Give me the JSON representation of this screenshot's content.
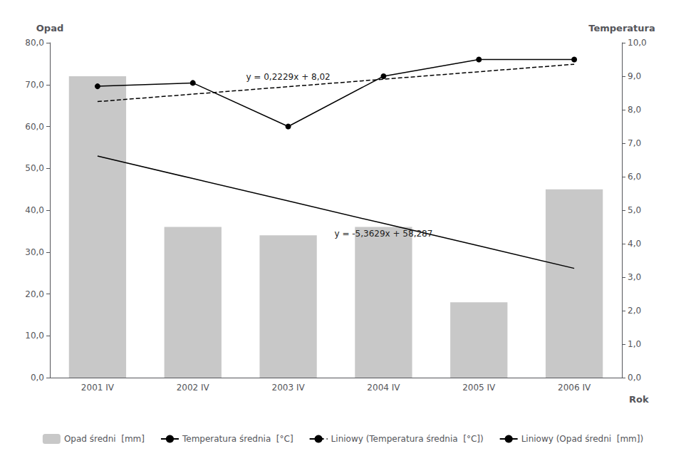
{
  "chart_data": {
    "type": "bar",
    "categories": [
      "2001 IV",
      "2002 IV",
      "2003 IV",
      "2004 IV",
      "2005 IV",
      "2006 IV"
    ],
    "xlabel": "Rok",
    "ylabel": "Opad",
    "y2label": "Temperatura",
    "series": [
      {
        "name": "Opad średni  [mm]",
        "type": "bar",
        "color": "#c8c8c8",
        "values": [
          72.0,
          36.0,
          34.0,
          36.0,
          18.0,
          45.0
        ]
      },
      {
        "name": "Temperatura średnia  [°C]",
        "type": "line",
        "color": "#000000",
        "marker": "circle",
        "axis": "y2",
        "values": [
          8.7,
          8.8,
          7.5,
          9.0,
          9.5,
          9.5
        ]
      },
      {
        "name": "Liniowy (Temperatura średnia  [°C])",
        "type": "line",
        "color": "#000000",
        "line_style": "dashed",
        "axis": "y2",
        "values": [
          8.2429,
          8.4658,
          8.6887,
          8.9116,
          9.1345,
          9.3574
        ]
      },
      {
        "name": "Liniowy (Opad średni  [mm])",
        "type": "line",
        "color": "#000000",
        "line_style": "solid",
        "values": [
          52.9241,
          47.5612,
          42.1983,
          36.8354,
          31.4725,
          26.1096
        ]
      }
    ],
    "annotations": [
      {
        "text": "y = 0,2229x + 8,02",
        "series": "Liniowy (Temperatura średnia  [°C])"
      },
      {
        "text": "y = -5,3629x + 58,287",
        "series": "Liniowy (Opad średni  [mm])"
      }
    ],
    "ylim": [
      0,
      80
    ],
    "yticks": [
      {
        "value": 0,
        "label": "0,0"
      },
      {
        "value": 10,
        "label": "10,0"
      },
      {
        "value": 20,
        "label": "20,0"
      },
      {
        "value": 30,
        "label": "30,0"
      },
      {
        "value": 40,
        "label": "40,0"
      },
      {
        "value": 50,
        "label": "50,0"
      },
      {
        "value": 60,
        "label": "60,0"
      },
      {
        "value": 70,
        "label": "70,0"
      },
      {
        "value": 80,
        "label": "80,0"
      }
    ],
    "y2lim": [
      0,
      10
    ],
    "y2ticks": [
      {
        "value": 0,
        "label": "0,0"
      },
      {
        "value": 1,
        "label": "1,0"
      },
      {
        "value": 2,
        "label": "2,0"
      },
      {
        "value": 3,
        "label": "3,0"
      },
      {
        "value": 4,
        "label": "4,0"
      },
      {
        "value": 5,
        "label": "5,0"
      },
      {
        "value": 6,
        "label": "6,0"
      },
      {
        "value": 7,
        "label": "7,0"
      },
      {
        "value": 8,
        "label": "8,0"
      },
      {
        "value": 9,
        "label": "9,0"
      },
      {
        "value": 10,
        "label": "10,0"
      }
    ],
    "grid": false,
    "legend": "bottom"
  }
}
